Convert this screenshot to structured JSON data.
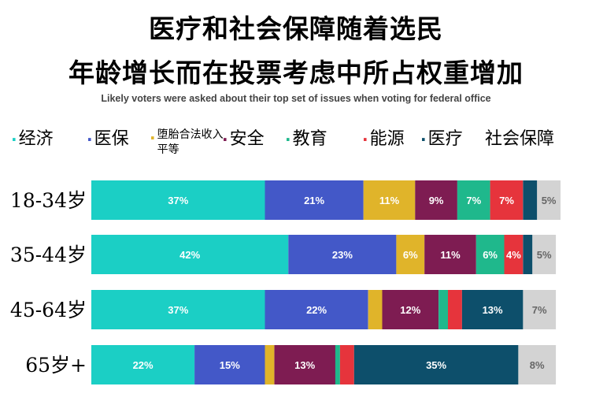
{
  "title_line1": "医疗和社会保障随着选民",
  "title_line2": "年龄增长而在投票考虑中所占权重增加",
  "subtitle": "Likely voters were asked about their top set of issues when voting for federal office",
  "colors": {
    "jingji": "#1bcfc5",
    "yibao": "#4358c8",
    "duotai": "#e0b42a",
    "anquan": "#7e1c52",
    "jiaoyu": "#1fb88c",
    "nengyuan": "#e6343c",
    "yiliao": "#0d4f6b",
    "shehuibaozhang": "#d3d3d3"
  },
  "legend": [
    {
      "key": "jingji",
      "label": "经济"
    },
    {
      "key": "yibao",
      "label": "医保"
    },
    {
      "key": "duotai",
      "label": "堕胎合法收入平等"
    },
    {
      "key": "anquan",
      "label": "安全"
    },
    {
      "key": "jiaoyu",
      "label": "教育"
    },
    {
      "key": "nengyuan",
      "label": "能源"
    },
    {
      "key": "yiliao",
      "label": "医疗"
    },
    {
      "key": "shehuibaozhang",
      "label": "社会保障"
    }
  ],
  "chart_data": {
    "type": "bar",
    "orientation": "horizontal",
    "stacked": true,
    "categories": [
      "18-34岁",
      "35-44岁",
      "45-64岁",
      "65岁+"
    ],
    "series": [
      {
        "name": "经济",
        "key": "jingji",
        "values": [
          37,
          42,
          37,
          22
        ],
        "labels": [
          "37%",
          "42%",
          "37%",
          "22%"
        ]
      },
      {
        "name": "医保",
        "key": "yibao",
        "values": [
          21,
          23,
          22,
          15
        ],
        "labels": [
          "21%",
          "23%",
          "22%",
          "15%"
        ]
      },
      {
        "name": "堕胎合法收入平等",
        "key": "duotai",
        "values": [
          11,
          6,
          3,
          2
        ],
        "labels": [
          "11%",
          "6%",
          "",
          ""
        ]
      },
      {
        "name": "安全",
        "key": "anquan",
        "values": [
          9,
          11,
          12,
          13
        ],
        "labels": [
          "9%",
          "11%",
          "12%",
          "13%"
        ]
      },
      {
        "name": "教育",
        "key": "jiaoyu",
        "values": [
          7,
          6,
          2,
          1
        ],
        "labels": [
          "7%",
          "6%",
          "",
          ""
        ]
      },
      {
        "name": "能源",
        "key": "nengyuan",
        "values": [
          7,
          4,
          3,
          3
        ],
        "labels": [
          "7%",
          "4%",
          "",
          ""
        ]
      },
      {
        "name": "医疗",
        "key": "yiliao",
        "values": [
          3,
          2,
          13,
          35
        ],
        "labels": [
          "",
          "",
          "13%",
          "35%"
        ]
      },
      {
        "name": "社会保障",
        "key": "shehuibaozhang",
        "values": [
          5,
          5,
          7,
          8
        ],
        "labels": [
          "5%",
          "5%",
          "7%",
          "8%"
        ]
      }
    ],
    "xlim": [
      0,
      101
    ],
    "grid": false,
    "legend_position": "top"
  }
}
